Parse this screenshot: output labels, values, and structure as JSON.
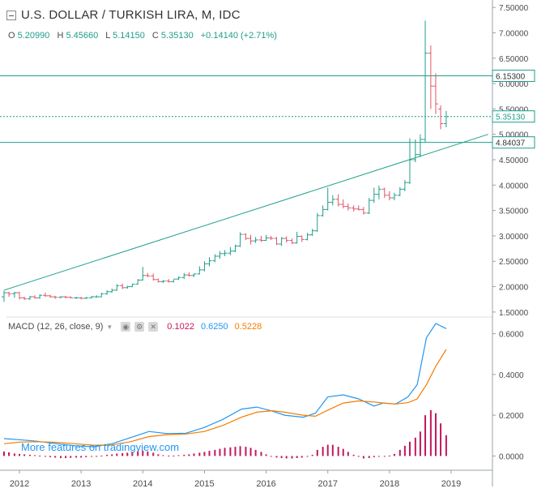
{
  "header": {
    "title": "U.S. DOLLAR / TURKISH LIRA, M, IDC",
    "o_label": "O",
    "o_value": "5.20990",
    "h_label": "H",
    "h_value": "5.45660",
    "l_label": "L",
    "l_value": "5.14150",
    "c_label": "C",
    "c_value": "5.35130",
    "change": "+0.14140 (+2.71%)"
  },
  "macd": {
    "label": "MACD (12, 26, close, 9)",
    "hist_value": "0.1022",
    "macd_value": "0.6250",
    "signal_value": "0.5228",
    "colors": {
      "hist": "#c2185b",
      "macd": "#2196f3",
      "signal": "#f57c00"
    }
  },
  "watermark": "More features on tradingview.com",
  "chart_data": [
    {
      "type": "candlestick",
      "title": "U.S. DOLLAR / TURKISH LIRA, M, IDC",
      "ylim": [
        1.45,
        7.55
      ],
      "y_ticks": [
        "1.50000",
        "2.00000",
        "2.50000",
        "3.00000",
        "3.50000",
        "4.00000",
        "4.50000",
        "5.00000",
        "5.50000",
        "6.00000",
        "6.50000",
        "7.00000",
        "7.50000"
      ],
      "x_ticks": [
        "2012",
        "2013",
        "2014",
        "2015",
        "2016",
        "2017",
        "2018",
        "2019"
      ],
      "price_labels": [
        {
          "value": 6.153,
          "text": "6.15300",
          "style": "solid"
        },
        {
          "value": 5.3513,
          "text": "5.35130",
          "style": "dotted"
        },
        {
          "value": 4.84037,
          "text": "4.84037",
          "style": "solid"
        }
      ],
      "trendline": {
        "from": [
          2011.75,
          1.93
        ],
        "to": [
          2019.6,
          5.0
        ]
      },
      "ohlc": [
        [
          2011.75,
          1.8,
          1.92,
          1.7,
          1.88
        ],
        [
          2011.83,
          1.88,
          1.9,
          1.8,
          1.86
        ],
        [
          2011.92,
          1.86,
          1.9,
          1.78,
          1.88
        ],
        [
          2012.0,
          1.88,
          1.9,
          1.75,
          1.78
        ],
        [
          2012.08,
          1.78,
          1.8,
          1.74,
          1.76
        ],
        [
          2012.17,
          1.76,
          1.82,
          1.74,
          1.8
        ],
        [
          2012.25,
          1.8,
          1.83,
          1.76,
          1.78
        ],
        [
          2012.33,
          1.78,
          1.85,
          1.76,
          1.83
        ],
        [
          2012.42,
          1.83,
          1.88,
          1.8,
          1.82
        ],
        [
          2012.5,
          1.82,
          1.84,
          1.78,
          1.8
        ],
        [
          2012.58,
          1.8,
          1.82,
          1.76,
          1.79
        ],
        [
          2012.67,
          1.79,
          1.81,
          1.77,
          1.8
        ],
        [
          2012.75,
          1.8,
          1.82,
          1.77,
          1.79
        ],
        [
          2012.83,
          1.79,
          1.81,
          1.77,
          1.78
        ],
        [
          2012.92,
          1.78,
          1.8,
          1.76,
          1.78
        ],
        [
          2013.0,
          1.78,
          1.8,
          1.75,
          1.77
        ],
        [
          2013.08,
          1.77,
          1.8,
          1.76,
          1.78
        ],
        [
          2013.17,
          1.78,
          1.82,
          1.77,
          1.8
        ],
        [
          2013.25,
          1.8,
          1.83,
          1.78,
          1.8
        ],
        [
          2013.33,
          1.8,
          1.88,
          1.79,
          1.86
        ],
        [
          2013.42,
          1.86,
          1.93,
          1.84,
          1.9
        ],
        [
          2013.5,
          1.9,
          1.96,
          1.88,
          1.93
        ],
        [
          2013.58,
          1.93,
          2.05,
          1.92,
          2.02
        ],
        [
          2013.67,
          2.02,
          2.06,
          1.95,
          1.98
        ],
        [
          2013.75,
          1.98,
          2.02,
          1.96,
          2.0
        ],
        [
          2013.83,
          2.0,
          2.06,
          1.99,
          2.05
        ],
        [
          2013.92,
          2.05,
          2.15,
          2.04,
          2.13
        ],
        [
          2014.0,
          2.13,
          2.39,
          2.12,
          2.22
        ],
        [
          2014.08,
          2.22,
          2.27,
          2.19,
          2.21
        ],
        [
          2014.17,
          2.21,
          2.26,
          2.12,
          2.14
        ],
        [
          2014.25,
          2.14,
          2.16,
          2.08,
          2.1
        ],
        [
          2014.33,
          2.1,
          2.13,
          2.07,
          2.11
        ],
        [
          2014.42,
          2.11,
          2.15,
          2.08,
          2.1
        ],
        [
          2014.5,
          2.1,
          2.14,
          2.08,
          2.15
        ],
        [
          2014.58,
          2.15,
          2.2,
          2.13,
          2.18
        ],
        [
          2014.67,
          2.18,
          2.27,
          2.15,
          2.23
        ],
        [
          2014.75,
          2.23,
          2.28,
          2.2,
          2.22
        ],
        [
          2014.83,
          2.22,
          2.26,
          2.19,
          2.25
        ],
        [
          2014.92,
          2.25,
          2.4,
          2.24,
          2.33
        ],
        [
          2015.0,
          2.33,
          2.5,
          2.3,
          2.45
        ],
        [
          2015.08,
          2.45,
          2.58,
          2.4,
          2.51
        ],
        [
          2015.17,
          2.51,
          2.64,
          2.48,
          2.6
        ],
        [
          2015.25,
          2.6,
          2.7,
          2.55,
          2.65
        ],
        [
          2015.33,
          2.65,
          2.72,
          2.6,
          2.66
        ],
        [
          2015.42,
          2.66,
          2.78,
          2.62,
          2.7
        ],
        [
          2015.5,
          2.7,
          2.83,
          2.68,
          2.8
        ],
        [
          2015.58,
          2.8,
          3.07,
          2.78,
          3.03
        ],
        [
          2015.67,
          3.03,
          3.05,
          2.92,
          2.95
        ],
        [
          2015.75,
          2.95,
          3.02,
          2.83,
          2.9
        ],
        [
          2015.83,
          2.9,
          2.98,
          2.86,
          2.92
        ],
        [
          2015.92,
          2.92,
          3.0,
          2.88,
          2.91
        ],
        [
          2016.0,
          2.91,
          3.02,
          2.9,
          2.96
        ],
        [
          2016.08,
          2.96,
          3.0,
          2.92,
          2.95
        ],
        [
          2016.17,
          2.95,
          2.98,
          2.82,
          2.84
        ],
        [
          2016.25,
          2.84,
          2.98,
          2.8,
          2.95
        ],
        [
          2016.33,
          2.95,
          2.99,
          2.87,
          2.91
        ],
        [
          2016.42,
          2.91,
          2.95,
          2.84,
          2.86
        ],
        [
          2016.5,
          2.86,
          3.08,
          2.85,
          2.99
        ],
        [
          2016.58,
          2.99,
          3.01,
          2.88,
          2.93
        ],
        [
          2016.67,
          2.93,
          3.06,
          2.91,
          3.02
        ],
        [
          2016.75,
          3.02,
          3.14,
          3.0,
          3.1
        ],
        [
          2016.83,
          3.1,
          3.45,
          3.08,
          3.4
        ],
        [
          2016.92,
          3.4,
          3.6,
          3.38,
          3.52
        ],
        [
          2017.0,
          3.52,
          3.95,
          3.5,
          3.66
        ],
        [
          2017.08,
          3.66,
          3.8,
          3.6,
          3.72
        ],
        [
          2017.17,
          3.72,
          3.82,
          3.58,
          3.62
        ],
        [
          2017.25,
          3.62,
          3.72,
          3.54,
          3.58
        ],
        [
          2017.33,
          3.58,
          3.64,
          3.5,
          3.55
        ],
        [
          2017.42,
          3.55,
          3.6,
          3.48,
          3.53
        ],
        [
          2017.5,
          3.53,
          3.6,
          3.5,
          3.52
        ],
        [
          2017.58,
          3.52,
          3.57,
          3.42,
          3.45
        ],
        [
          2017.67,
          3.45,
          3.75,
          3.43,
          3.7
        ],
        [
          2017.75,
          3.7,
          3.95,
          3.65,
          3.82
        ],
        [
          2017.83,
          3.82,
          3.99,
          3.72,
          3.92
        ],
        [
          2017.92,
          3.92,
          3.95,
          3.75,
          3.8
        ],
        [
          2018.0,
          3.8,
          3.88,
          3.7,
          3.75
        ],
        [
          2018.08,
          3.75,
          3.85,
          3.7,
          3.8
        ],
        [
          2018.17,
          3.8,
          3.96,
          3.78,
          3.92
        ],
        [
          2018.25,
          3.92,
          4.1,
          3.88,
          4.05
        ],
        [
          2018.33,
          4.05,
          4.92,
          4.02,
          4.5
        ],
        [
          2018.42,
          4.5,
          4.9,
          4.45,
          4.6
        ],
        [
          2018.5,
          4.6,
          5.0,
          4.55,
          4.9
        ],
        [
          2018.58,
          4.9,
          7.24,
          4.85,
          6.6
        ],
        [
          2018.67,
          6.6,
          6.75,
          5.5,
          5.95
        ],
        [
          2018.75,
          5.95,
          6.2,
          5.4,
          5.6
        ],
        [
          2018.83,
          5.5,
          5.57,
          5.1,
          5.21
        ],
        [
          2018.92,
          5.21,
          5.46,
          5.14,
          5.35
        ]
      ]
    },
    {
      "type": "macd",
      "label": "MACD (12, 26, close, 9)",
      "ylim": [
        -0.07,
        0.67
      ],
      "y_ticks": [
        "0.0000",
        "0.2000",
        "0.4000",
        "0.6000"
      ],
      "points": [
        {
          "t": 2011.75,
          "macd": 0.085,
          "signal": 0.06
        },
        {
          "t": 2012.0,
          "macd": 0.08,
          "signal": 0.068
        },
        {
          "t": 2012.3,
          "macd": 0.072,
          "signal": 0.07
        },
        {
          "t": 2012.6,
          "macd": 0.06,
          "signal": 0.067
        },
        {
          "t": 2012.9,
          "macd": 0.05,
          "signal": 0.06
        },
        {
          "t": 2013.2,
          "macd": 0.045,
          "signal": 0.053
        },
        {
          "t": 2013.5,
          "macd": 0.06,
          "signal": 0.054
        },
        {
          "t": 2013.8,
          "macd": 0.09,
          "signal": 0.07
        },
        {
          "t": 2014.1,
          "macd": 0.12,
          "signal": 0.095
        },
        {
          "t": 2014.4,
          "macd": 0.11,
          "signal": 0.105
        },
        {
          "t": 2014.7,
          "macd": 0.112,
          "signal": 0.108
        },
        {
          "t": 2015.0,
          "macd": 0.14,
          "signal": 0.12
        },
        {
          "t": 2015.3,
          "macd": 0.18,
          "signal": 0.15
        },
        {
          "t": 2015.6,
          "macd": 0.23,
          "signal": 0.19
        },
        {
          "t": 2015.85,
          "macd": 0.24,
          "signal": 0.215
        },
        {
          "t": 2016.1,
          "macd": 0.22,
          "signal": 0.222
        },
        {
          "t": 2016.3,
          "macd": 0.2,
          "signal": 0.215
        },
        {
          "t": 2016.6,
          "macd": 0.19,
          "signal": 0.2
        },
        {
          "t": 2016.8,
          "macd": 0.21,
          "signal": 0.195
        },
        {
          "t": 2017.0,
          "macd": 0.29,
          "signal": 0.225
        },
        {
          "t": 2017.25,
          "macd": 0.3,
          "signal": 0.26
        },
        {
          "t": 2017.5,
          "macd": 0.28,
          "signal": 0.27
        },
        {
          "t": 2017.75,
          "macd": 0.245,
          "signal": 0.265
        },
        {
          "t": 2017.9,
          "macd": 0.26,
          "signal": 0.26
        },
        {
          "t": 2018.1,
          "macd": 0.255,
          "signal": 0.255
        },
        {
          "t": 2018.3,
          "macd": 0.29,
          "signal": 0.262
        },
        {
          "t": 2018.45,
          "macd": 0.35,
          "signal": 0.28
        },
        {
          "t": 2018.6,
          "macd": 0.58,
          "signal": 0.35
        },
        {
          "t": 2018.75,
          "macd": 0.65,
          "signal": 0.44
        },
        {
          "t": 2018.92,
          "macd": 0.625,
          "signal": 0.5228
        }
      ],
      "histogram": [
        [
          2011.75,
          0.022
        ],
        [
          2011.83,
          0.018
        ],
        [
          2011.92,
          0.012
        ],
        [
          2012.0,
          0.01
        ],
        [
          2012.08,
          0.008
        ],
        [
          2012.17,
          0.006
        ],
        [
          2012.25,
          0.004
        ],
        [
          2012.33,
          0.002
        ],
        [
          2012.42,
          -0.002
        ],
        [
          2012.5,
          -0.006
        ],
        [
          2012.58,
          -0.008
        ],
        [
          2012.67,
          -0.01
        ],
        [
          2012.75,
          -0.01
        ],
        [
          2012.83,
          -0.009
        ],
        [
          2012.92,
          -0.008
        ],
        [
          2013.0,
          -0.008
        ],
        [
          2013.08,
          -0.006
        ],
        [
          2013.17,
          -0.004
        ],
        [
          2013.25,
          -0.002
        ],
        [
          2013.33,
          0.002
        ],
        [
          2013.42,
          0.006
        ],
        [
          2013.5,
          0.008
        ],
        [
          2013.58,
          0.012
        ],
        [
          2013.67,
          0.014
        ],
        [
          2013.75,
          0.016
        ],
        [
          2013.83,
          0.02
        ],
        [
          2013.92,
          0.024
        ],
        [
          2014.0,
          0.026
        ],
        [
          2014.08,
          0.022
        ],
        [
          2014.17,
          0.016
        ],
        [
          2014.25,
          0.008
        ],
        [
          2014.33,
          0.004
        ],
        [
          2014.42,
          0.002
        ],
        [
          2014.5,
          0.002
        ],
        [
          2014.58,
          0.004
        ],
        [
          2014.67,
          0.006
        ],
        [
          2014.75,
          0.008
        ],
        [
          2014.83,
          0.012
        ],
        [
          2014.92,
          0.016
        ],
        [
          2015.0,
          0.02
        ],
        [
          2015.08,
          0.025
        ],
        [
          2015.17,
          0.03
        ],
        [
          2015.25,
          0.035
        ],
        [
          2015.33,
          0.04
        ],
        [
          2015.42,
          0.042
        ],
        [
          2015.5,
          0.045
        ],
        [
          2015.58,
          0.048
        ],
        [
          2015.67,
          0.045
        ],
        [
          2015.75,
          0.04
        ],
        [
          2015.83,
          0.03
        ],
        [
          2015.92,
          0.02
        ],
        [
          2016.0,
          0.008
        ],
        [
          2016.08,
          -0.002
        ],
        [
          2016.17,
          -0.008
        ],
        [
          2016.25,
          -0.01
        ],
        [
          2016.33,
          -0.012
        ],
        [
          2016.42,
          -0.012
        ],
        [
          2016.5,
          -0.01
        ],
        [
          2016.58,
          -0.008
        ],
        [
          2016.67,
          -0.004
        ],
        [
          2016.75,
          0.006
        ],
        [
          2016.83,
          0.03
        ],
        [
          2016.92,
          0.045
        ],
        [
          2017.0,
          0.055
        ],
        [
          2017.08,
          0.055
        ],
        [
          2017.17,
          0.045
        ],
        [
          2017.25,
          0.035
        ],
        [
          2017.33,
          0.02
        ],
        [
          2017.42,
          0.006
        ],
        [
          2017.5,
          -0.004
        ],
        [
          2017.58,
          -0.012
        ],
        [
          2017.67,
          -0.01
        ],
        [
          2017.75,
          -0.006
        ],
        [
          2017.83,
          -0.002
        ],
        [
          2017.92,
          0.0
        ],
        [
          2018.0,
          0.002
        ],
        [
          2018.08,
          0.01
        ],
        [
          2018.17,
          0.03
        ],
        [
          2018.25,
          0.05
        ],
        [
          2018.33,
          0.07
        ],
        [
          2018.42,
          0.09
        ],
        [
          2018.5,
          0.12
        ],
        [
          2018.58,
          0.2
        ],
        [
          2018.67,
          0.225
        ],
        [
          2018.75,
          0.21
        ],
        [
          2018.83,
          0.16
        ],
        [
          2018.92,
          0.1022
        ]
      ]
    }
  ]
}
